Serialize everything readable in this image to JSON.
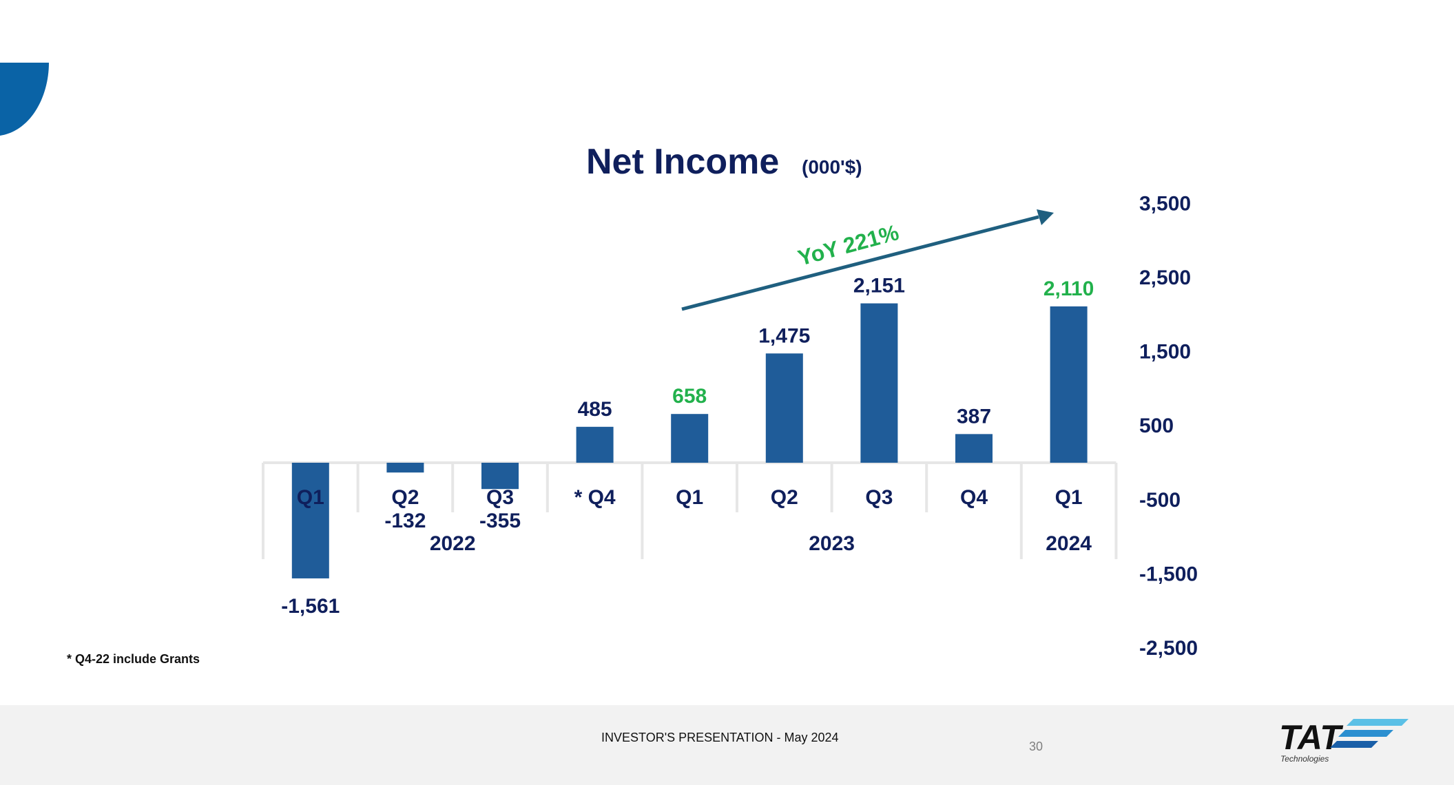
{
  "chart_data": {
    "type": "bar",
    "title": "Net Income",
    "subtitle": "(000'$)",
    "categories": [
      "Q1",
      "Q2",
      "Q3",
      "* Q4",
      "Q1",
      "Q2",
      "Q3",
      "Q4",
      "Q1"
    ],
    "years": [
      {
        "label": "2022",
        "start": 0,
        "end": 3
      },
      {
        "label": "2023",
        "start": 4,
        "end": 7
      },
      {
        "label": "2024",
        "start": 8,
        "end": 8
      }
    ],
    "values": [
      -1561,
      -132,
      -355,
      485,
      658,
      1475,
      2151,
      387,
      2110
    ],
    "value_labels": [
      "-1,561",
      "-132",
      "-355",
      "485",
      "658",
      "1,475",
      "2,151",
      "387",
      "2,110"
    ],
    "highlight_indices": [
      4,
      8
    ],
    "yaxis_ticks": [
      3500,
      2500,
      1500,
      500,
      -500,
      -1500,
      -2500
    ],
    "yaxis_tick_labels": [
      "3,500",
      "2,500",
      "1,500",
      "500",
      "-500",
      "-1,500",
      "-2,500"
    ],
    "ylim": [
      -2500,
      3500
    ],
    "grid": false,
    "annotation": "YoY 221%",
    "colors": {
      "bar": "#1f5c99",
      "label": "#0f1f5c",
      "highlight": "#22b14c",
      "arrow": "#1f5f7f"
    }
  },
  "footnote": "* Q4-22 include Grants",
  "footer": {
    "title": "INVESTOR'S PRESENTATION - May 2024",
    "page_number": "30",
    "logo_text": "TAT",
    "logo_subtext": "Technologies"
  },
  "colors": {
    "accent": "#0a63a6",
    "footer_bg": "#f2f2f2"
  }
}
